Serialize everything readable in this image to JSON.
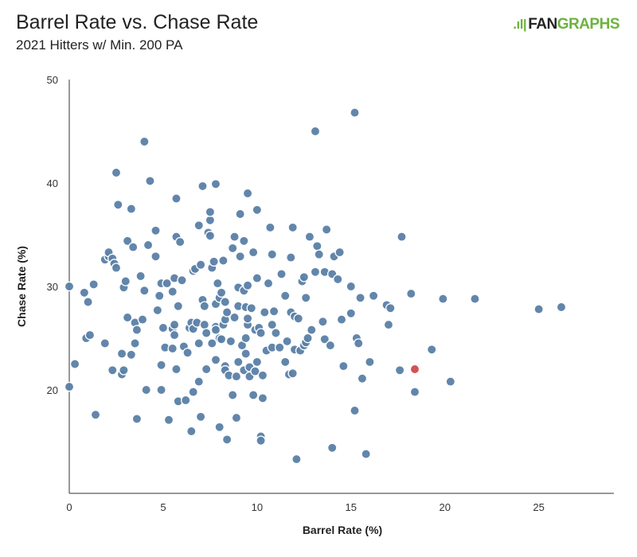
{
  "header": {
    "title": "Barrel Rate vs. Chase Rate",
    "subtitle": "2021 Hitters w/ Min. 200 PA",
    "logo_mark": ".ıl|",
    "logo_a": "FAN",
    "logo_b": "GRAPHS"
  },
  "chart_data": {
    "type": "scatter",
    "title": "Barrel Rate vs. Chase Rate",
    "subtitle": "2021 Hitters w/ Min. 200 PA",
    "xlabel": "Barrel Rate (%)",
    "ylabel": "Chase Rate (%)",
    "xlim": [
      0,
      29
    ],
    "ylim": [
      10,
      50
    ],
    "xticks": [
      0,
      5,
      10,
      15,
      20,
      25
    ],
    "yticks": [
      20,
      30,
      40,
      50
    ],
    "grid": false,
    "point_color": "#5a7fa6",
    "highlight_color": "#d45353",
    "highlight": {
      "x": 18.4,
      "y": 22.0
    },
    "points": [
      [
        0,
        30
      ],
      [
        0,
        20.3
      ],
      [
        0.3,
        22.5
      ],
      [
        0.8,
        29.4
      ],
      [
        1,
        28.5
      ],
      [
        0.9,
        25
      ],
      [
        1.1,
        25.3
      ],
      [
        1.3,
        30.2
      ],
      [
        1.4,
        17.6
      ],
      [
        1.9,
        24.5
      ],
      [
        1.9,
        32.6
      ],
      [
        2.1,
        32.9
      ],
      [
        2.1,
        33.3
      ],
      [
        2.3,
        32.7
      ],
      [
        2.4,
        32.2
      ],
      [
        2.5,
        31.8
      ],
      [
        2.5,
        41
      ],
      [
        2.3,
        21.9
      ],
      [
        2.6,
        37.9
      ],
      [
        2.8,
        23.5
      ],
      [
        2.8,
        21.5
      ],
      [
        2.9,
        21.9
      ],
      [
        2.9,
        29.9
      ],
      [
        3,
        30.5
      ],
      [
        3.1,
        34.4
      ],
      [
        3.1,
        27
      ],
      [
        3.3,
        23.4
      ],
      [
        3.3,
        37.5
      ],
      [
        3.4,
        33.8
      ],
      [
        3.5,
        24.5
      ],
      [
        3.5,
        26.5
      ],
      [
        3.6,
        25.8
      ],
      [
        3.6,
        17.2
      ],
      [
        3.8,
        31
      ],
      [
        3.9,
        26.8
      ],
      [
        4,
        29.6
      ],
      [
        4,
        44
      ],
      [
        4.1,
        20
      ],
      [
        4.2,
        34
      ],
      [
        4.3,
        40.2
      ],
      [
        4.6,
        35.4
      ],
      [
        4.6,
        32.9
      ],
      [
        4.7,
        27.7
      ],
      [
        4.8,
        29.1
      ],
      [
        4.9,
        30.3
      ],
      [
        4.9,
        22.4
      ],
      [
        4.9,
        20
      ],
      [
        5,
        26
      ],
      [
        5.1,
        24.1
      ],
      [
        5.2,
        30.3
      ],
      [
        5.3,
        17.1
      ],
      [
        5.5,
        25.9
      ],
      [
        5.5,
        24
      ],
      [
        5.5,
        29.5
      ],
      [
        5.6,
        26.3
      ],
      [
        5.6,
        25.3
      ],
      [
        5.6,
        30.8
      ],
      [
        5.7,
        38.5
      ],
      [
        5.7,
        34.8
      ],
      [
        5.7,
        22
      ],
      [
        5.8,
        18.9
      ],
      [
        5.8,
        28.1
      ],
      [
        5.9,
        34.3
      ],
      [
        6,
        30.6
      ],
      [
        6.1,
        24.2
      ],
      [
        6.2,
        19
      ],
      [
        6.3,
        23.6
      ],
      [
        6.4,
        26
      ],
      [
        6.5,
        26.5
      ],
      [
        6.5,
        16
      ],
      [
        6.6,
        19.8
      ],
      [
        6.6,
        25.9
      ],
      [
        6.6,
        31.5
      ],
      [
        6.7,
        31.7
      ],
      [
        6.8,
        26.5
      ],
      [
        6.9,
        24.5
      ],
      [
        6.9,
        20.8
      ],
      [
        6.9,
        35.9
      ],
      [
        7,
        17.4
      ],
      [
        7,
        32.1
      ],
      [
        7.1,
        39.7
      ],
      [
        7.1,
        28.7
      ],
      [
        7.2,
        28.1
      ],
      [
        7.2,
        26.3
      ],
      [
        7.3,
        25.5
      ],
      [
        7.3,
        22
      ],
      [
        7.4,
        35.2
      ],
      [
        7.5,
        34.9
      ],
      [
        7.5,
        36.4
      ],
      [
        7.5,
        37.2
      ],
      [
        7.6,
        31.8
      ],
      [
        7.6,
        24.5
      ],
      [
        7.7,
        32.4
      ],
      [
        7.8,
        26.1
      ],
      [
        7.8,
        28.3
      ],
      [
        7.8,
        25.8
      ],
      [
        7.8,
        22.9
      ],
      [
        7.8,
        39.9
      ],
      [
        7.9,
        30.3
      ],
      [
        8,
        28.9
      ],
      [
        8,
        25
      ],
      [
        8,
        16.4
      ],
      [
        8.1,
        24.9
      ],
      [
        8.1,
        29.4
      ],
      [
        8.2,
        32.5
      ],
      [
        8.2,
        26.3
      ],
      [
        8.3,
        26.8
      ],
      [
        8.3,
        22.3
      ],
      [
        8.3,
        21.9
      ],
      [
        8.3,
        28.5
      ],
      [
        8.4,
        15.2
      ],
      [
        8.4,
        27.5
      ],
      [
        8.5,
        21.4
      ],
      [
        8.6,
        24.7
      ],
      [
        8.7,
        19.5
      ],
      [
        8.7,
        33.7
      ],
      [
        8.8,
        34.8
      ],
      [
        8.8,
        27
      ],
      [
        8.9,
        17.3
      ],
      [
        8.9,
        21.3
      ],
      [
        9,
        29.9
      ],
      [
        9,
        28.1
      ],
      [
        9,
        22.7
      ],
      [
        9.1,
        37
      ],
      [
        9.1,
        32.9
      ],
      [
        9.2,
        24.3
      ],
      [
        9.3,
        29.6
      ],
      [
        9.3,
        34.4
      ],
      [
        9.3,
        21.9
      ],
      [
        9.4,
        28
      ],
      [
        9.4,
        25
      ],
      [
        9.4,
        23.5
      ],
      [
        9.5,
        39
      ],
      [
        9.5,
        26.3
      ],
      [
        9.5,
        26.9
      ],
      [
        9.5,
        30.1
      ],
      [
        9.6,
        22.2
      ],
      [
        9.6,
        21.3
      ],
      [
        9.7,
        27.9
      ],
      [
        9.8,
        33.3
      ],
      [
        9.8,
        19.5
      ],
      [
        9.9,
        25.8
      ],
      [
        9.9,
        21.8
      ],
      [
        10,
        22.7
      ],
      [
        10,
        37.4
      ],
      [
        10,
        30.8
      ],
      [
        10.1,
        26
      ],
      [
        10.2,
        25.5
      ],
      [
        10.2,
        15.5
      ],
      [
        10.2,
        15.1
      ],
      [
        10.3,
        19.2
      ],
      [
        10.3,
        21.4
      ],
      [
        10.4,
        27.5
      ],
      [
        10.5,
        23.8
      ],
      [
        10.6,
        30.3
      ],
      [
        10.7,
        35.7
      ],
      [
        10.8,
        33.1
      ],
      [
        10.8,
        26.3
      ],
      [
        10.8,
        24.1
      ],
      [
        10.9,
        27.6
      ],
      [
        11,
        25.5
      ],
      [
        11.2,
        24.1
      ],
      [
        11.3,
        31.2
      ],
      [
        11.5,
        29.1
      ],
      [
        11.5,
        22.7
      ],
      [
        11.6,
        24.7
      ],
      [
        11.7,
        21.5
      ],
      [
        11.9,
        35.7
      ],
      [
        11.8,
        32.8
      ],
      [
        11.8,
        27.5
      ],
      [
        11.9,
        21.6
      ],
      [
        12,
        27.1
      ],
      [
        12,
        23.9
      ],
      [
        12.1,
        13.3
      ],
      [
        12.2,
        26.9
      ],
      [
        12.3,
        23.8
      ],
      [
        12.4,
        30.5
      ],
      [
        12.5,
        30.9
      ],
      [
        12.5,
        24.3
      ],
      [
        12.6,
        28.9
      ],
      [
        12.6,
        24.6
      ],
      [
        12.7,
        25
      ],
      [
        12.8,
        34.8
      ],
      [
        12.9,
        25.8
      ],
      [
        13.1,
        45
      ],
      [
        13.1,
        31.4
      ],
      [
        13.2,
        33.9
      ],
      [
        13.3,
        33.1
      ],
      [
        13.5,
        26.6
      ],
      [
        13.6,
        31.4
      ],
      [
        13.6,
        24.9
      ],
      [
        13.7,
        35.5
      ],
      [
        13.9,
        24.3
      ],
      [
        14,
        31.2
      ],
      [
        14,
        14.4
      ],
      [
        14.1,
        32.9
      ],
      [
        14.3,
        30.7
      ],
      [
        14.4,
        33.3
      ],
      [
        14.5,
        26.8
      ],
      [
        14.6,
        22.3
      ],
      [
        15,
        30
      ],
      [
        15,
        27.4
      ],
      [
        15.2,
        46.8
      ],
      [
        15.2,
        18
      ],
      [
        15.3,
        25
      ],
      [
        15.4,
        24.5
      ],
      [
        15.5,
        28.9
      ],
      [
        15.6,
        21.1
      ],
      [
        15.8,
        13.8
      ],
      [
        16,
        22.7
      ],
      [
        16.2,
        29.1
      ],
      [
        16.9,
        28.2
      ],
      [
        17,
        26.3
      ],
      [
        17.1,
        27.9
      ],
      [
        17.6,
        21.9
      ],
      [
        17.7,
        34.8
      ],
      [
        18.2,
        29.3
      ],
      [
        18.4,
        19.8
      ],
      [
        19.3,
        23.9
      ],
      [
        19.9,
        28.8
      ],
      [
        20.3,
        20.8
      ],
      [
        21.6,
        28.8
      ],
      [
        25,
        27.8
      ],
      [
        26.2,
        28
      ]
    ]
  }
}
